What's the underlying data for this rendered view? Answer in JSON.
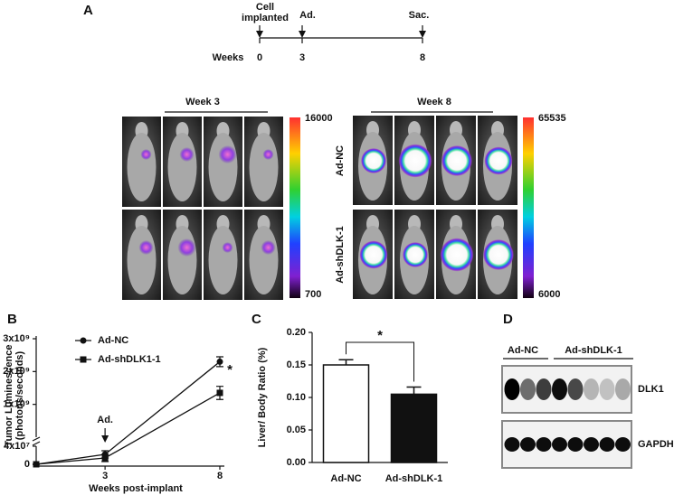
{
  "figure": {
    "panel_labels": [
      "A",
      "B",
      "C",
      "D"
    ],
    "timeline": {
      "axis_label": "Weeks",
      "events": [
        {
          "label": [
            "Cell",
            "implanted"
          ],
          "week": 0
        },
        {
          "label": "Ad.",
          "week": 3
        },
        {
          "label": "Sac.",
          "week": 8
        }
      ]
    },
    "imaging": {
      "panels": [
        {
          "title": "Week 3",
          "scale": [
            16000,
            700
          ]
        },
        {
          "title": "Week 8",
          "scale": [
            65535,
            6000
          ],
          "row_labels": [
            "Ad-NC",
            "Ad-shDLK-1"
          ]
        }
      ]
    },
    "blot": {
      "groups": [
        "Ad-NC",
        "Ad-shDLK-1"
      ],
      "bands": [
        "DLK1",
        "GAPDH"
      ]
    }
  },
  "chart_data": [
    {
      "type": "line",
      "ylabel": [
        "Tumor Luminescence",
        "(photons/seconds)"
      ],
      "xlabel": "Weeks post-implant",
      "x": [
        0,
        3,
        8
      ],
      "xlim": [
        0,
        8
      ],
      "xticks": [
        3,
        8
      ],
      "ylim": [
        0,
        3000000000
      ],
      "yticks": [
        {
          "value": 1000000000,
          "label": "1x10⁹"
        },
        {
          "value": 2000000000,
          "label": "2x10⁹"
        },
        {
          "value": 3000000000,
          "label": "3x10⁹"
        }
      ],
      "ylim_lower": [
        0,
        40000000
      ],
      "yticks_lower": [
        0,
        {
          "value": 40000000,
          "label": "4x10⁷"
        }
      ],
      "annotations": [
        "Ad.",
        "*"
      ],
      "series": [
        {
          "name": "Ad-NC",
          "marker": "circle",
          "color": "#111111",
          "values": [
            0,
            22000000,
            2300000000
          ],
          "errors": [
            0,
            8000000,
            150000000
          ]
        },
        {
          "name": "Ad-shDLK1-1",
          "marker": "square",
          "color": "#111111",
          "values": [
            0,
            14000000,
            1350000000
          ],
          "errors": [
            0,
            8000000,
            200000000
          ]
        }
      ]
    },
    {
      "type": "bar",
      "ylabel": "Liver/ Body Ratio (%)",
      "categories": [
        "Ad-NC",
        "Ad-shDLK-1"
      ],
      "values": [
        0.15,
        0.105
      ],
      "errors": [
        0.008,
        0.011
      ],
      "colors": [
        "#ffffff",
        "#111111"
      ],
      "ylim": [
        0,
        0.2
      ],
      "yticks": [
        {
          "value": 0,
          "label": "0.00"
        },
        {
          "value": 0.05,
          "label": "0.05"
        },
        {
          "value": 0.1,
          "label": "0.10"
        },
        {
          "value": 0.15,
          "label": "0.15"
        },
        {
          "value": 0.2,
          "label": "0.20"
        }
      ],
      "annotations": [
        "*"
      ]
    }
  ]
}
